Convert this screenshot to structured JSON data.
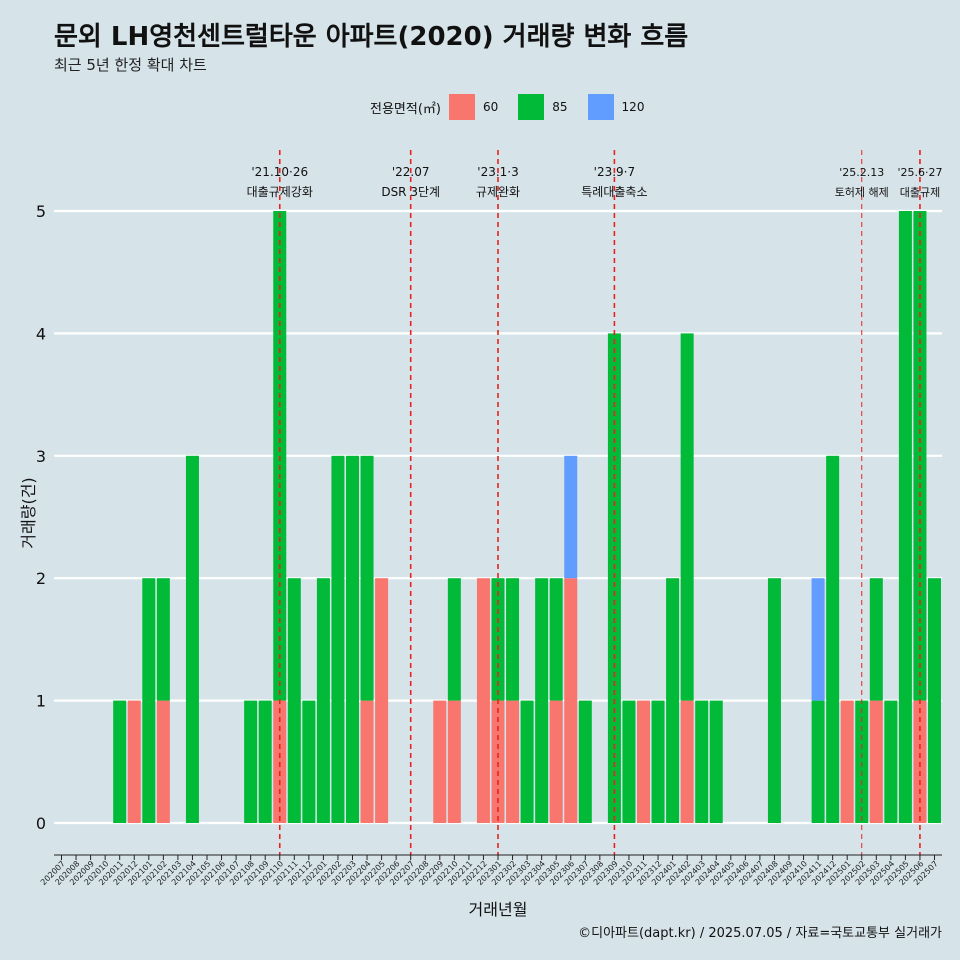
{
  "title": "문외 LH영천센트럴타운 아파트(2020) 거래량 변화 흐름",
  "subtitle": "최근 5년 한정 확대 차트",
  "caption": "©디아파트(dapt.kr) / 2025.07.05 / 자료=국토교통부 실거래가",
  "legend": {
    "title": "전용면적(㎡)",
    "items": [
      {
        "label": "60",
        "color": "#f8766d"
      },
      {
        "label": "85",
        "color": "#00ba38"
      },
      {
        "label": "120",
        "color": "#619cff"
      }
    ]
  },
  "chart_data": {
    "type": "bar",
    "stacked": true,
    "xlabel": "거래년월",
    "ylabel": "거래량(건)",
    "ylim": [
      0,
      5
    ],
    "yticks": [
      0,
      1,
      2,
      3,
      4,
      5
    ],
    "grid": true,
    "legend_position": "top",
    "categories": [
      "202007",
      "202008",
      "202009",
      "202010",
      "202011",
      "202012",
      "202101",
      "202102",
      "202103",
      "202104",
      "202105",
      "202106",
      "202107",
      "202108",
      "202109",
      "202110",
      "202111",
      "202112",
      "202201",
      "202202",
      "202203",
      "202204",
      "202205",
      "202206",
      "202207",
      "202208",
      "202209",
      "202210",
      "202211",
      "202212",
      "202301",
      "202302",
      "202303",
      "202304",
      "202305",
      "202306",
      "202307",
      "202308",
      "202309",
      "202310",
      "202311",
      "202312",
      "202401",
      "202402",
      "202403",
      "202404",
      "202405",
      "202406",
      "202407",
      "202408",
      "202409",
      "202410",
      "202411",
      "202412",
      "202501",
      "202502",
      "202503",
      "202504",
      "202505",
      "202506",
      "202507"
    ],
    "series": [
      {
        "name": "60",
        "color": "#f8766d",
        "values": [
          0,
          0,
          0,
          0,
          0,
          1,
          0,
          1,
          0,
          0,
          0,
          0,
          0,
          0,
          0,
          1,
          0,
          0,
          0,
          0,
          0,
          1,
          2,
          0,
          0,
          0,
          1,
          1,
          0,
          2,
          1,
          1,
          0,
          0,
          1,
          2,
          0,
          0,
          0,
          0,
          1,
          0,
          0,
          1,
          0,
          0,
          0,
          0,
          0,
          0,
          0,
          0,
          0,
          0,
          1,
          0,
          1,
          0,
          0,
          1,
          0
        ]
      },
      {
        "name": "85",
        "color": "#00ba38",
        "values": [
          0,
          0,
          0,
          0,
          1,
          0,
          2,
          1,
          0,
          3,
          0,
          0,
          0,
          1,
          1,
          4,
          2,
          1,
          2,
          3,
          3,
          2,
          0,
          0,
          0,
          0,
          0,
          1,
          0,
          0,
          1,
          1,
          1,
          2,
          1,
          0,
          1,
          0,
          4,
          1,
          0,
          1,
          2,
          3,
          1,
          1,
          0,
          0,
          0,
          2,
          0,
          0,
          1,
          3,
          0,
          1,
          1,
          1,
          5,
          4,
          2
        ]
      },
      {
        "name": "120",
        "color": "#619cff",
        "values": [
          0,
          0,
          0,
          0,
          0,
          0,
          0,
          0,
          0,
          0,
          0,
          0,
          0,
          0,
          0,
          0,
          0,
          0,
          0,
          0,
          0,
          0,
          0,
          0,
          0,
          0,
          0,
          0,
          0,
          0,
          0,
          0,
          0,
          0,
          0,
          1,
          0,
          0,
          0,
          0,
          0,
          0,
          0,
          0,
          0,
          0,
          0,
          0,
          0,
          0,
          0,
          0,
          1,
          0,
          0,
          0,
          0,
          0,
          0,
          0,
          0
        ]
      }
    ],
    "events": [
      {
        "at": "202110",
        "date": "'21.10·26",
        "label": "대출규제강화"
      },
      {
        "at": "202207",
        "date": "'22.07",
        "label": "DSR 3단계"
      },
      {
        "at": "202301",
        "date": "'23.1·3",
        "label": "규제완화"
      },
      {
        "at": "202309",
        "date": "'23.9·7",
        "label": "특례대출축소"
      },
      {
        "at": "202502",
        "date": "'25.2.13",
        "label": "토허제 해제"
      },
      {
        "at": "202506",
        "date": "'25.6·27",
        "label": "대출규제"
      }
    ]
  }
}
